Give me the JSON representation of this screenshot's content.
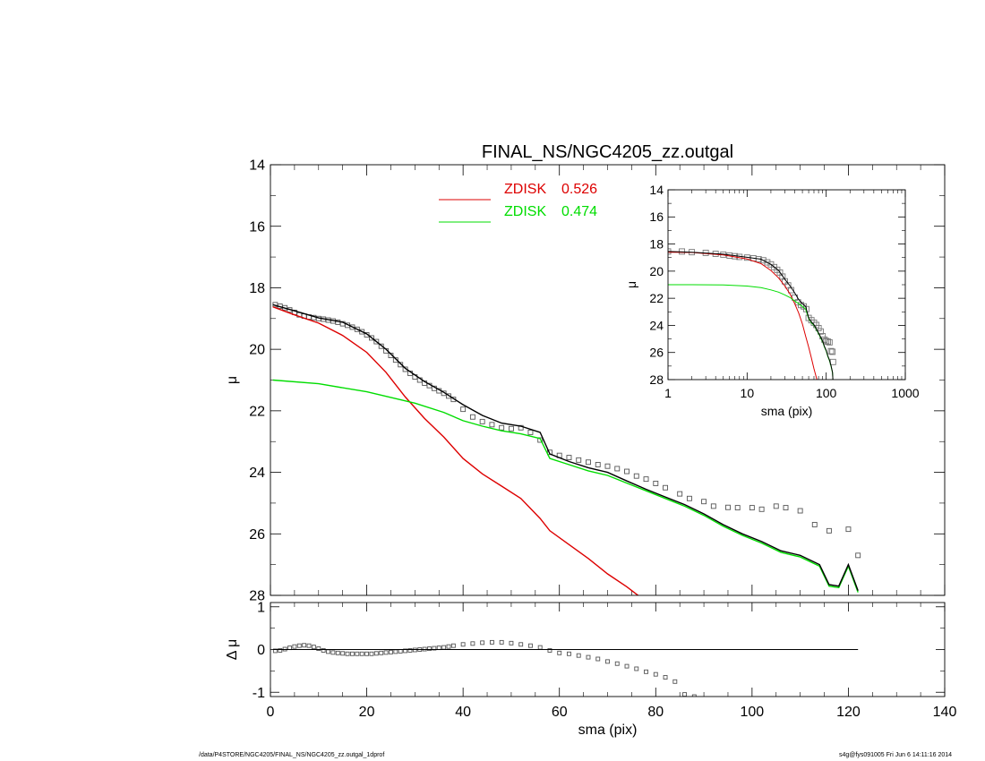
{
  "chart_data": [
    {
      "type": "line",
      "title": "FINAL_NS/NGC4205_zz.outgal",
      "xlabel": "",
      "ylabel": "μ",
      "xlim": [
        0,
        140
      ],
      "ylim": [
        28,
        14
      ],
      "yticks": [
        14,
        16,
        18,
        20,
        22,
        24,
        26,
        28
      ],
      "y_reversed": true,
      "legend_position": "top-center",
      "legend": [
        {
          "name": "ZDISK",
          "value": "0.526",
          "color": "#dd0000"
        },
        {
          "name": "ZDISK",
          "value": "0.474",
          "color": "#00dd00"
        }
      ],
      "series": [
        {
          "name": "data",
          "style": "square-markers",
          "color": "#555555",
          "x": [
            1,
            2,
            3,
            4,
            5,
            6,
            7,
            8,
            9,
            10,
            11,
            12,
            13,
            14,
            15,
            16,
            17,
            18,
            19,
            20,
            21,
            22,
            23,
            24,
            25,
            26,
            27,
            28,
            29,
            30,
            31,
            32,
            33,
            34,
            35,
            36,
            37,
            38,
            40,
            42,
            44,
            46,
            48,
            50,
            52,
            54,
            56,
            58,
            60,
            62,
            64,
            66,
            68,
            70,
            72,
            74,
            76,
            78,
            80,
            82,
            85,
            87,
            90,
            92,
            95,
            97,
            100,
            102,
            105,
            107,
            110,
            113,
            116,
            120,
            122
          ],
          "y": [
            18.55,
            18.6,
            18.65,
            18.72,
            18.8,
            18.88,
            18.92,
            18.95,
            18.97,
            19.0,
            19.02,
            19.05,
            19.08,
            19.12,
            19.17,
            19.22,
            19.28,
            19.35,
            19.43,
            19.53,
            19.63,
            19.75,
            19.9,
            20.05,
            20.2,
            20.35,
            20.5,
            20.65,
            20.78,
            20.9,
            21.0,
            21.1,
            21.18,
            21.27,
            21.35,
            21.43,
            21.52,
            21.63,
            21.95,
            22.2,
            22.35,
            22.45,
            22.55,
            22.58,
            22.55,
            22.7,
            22.95,
            23.35,
            23.45,
            23.52,
            23.6,
            23.67,
            23.75,
            23.8,
            23.88,
            23.97,
            24.12,
            24.22,
            24.36,
            24.5,
            24.7,
            24.85,
            24.95,
            25.1,
            25.14,
            25.15,
            25.15,
            25.2,
            25.1,
            25.15,
            25.25,
            25.7,
            25.9,
            25.85,
            26.7
          ]
        },
        {
          "name": "ZDISK 0.526",
          "color": "#dd0000",
          "x": [
            0.5,
            5,
            10,
            15,
            20,
            24,
            28,
            32,
            36,
            40,
            44,
            48,
            52,
            56,
            58,
            62,
            66,
            70,
            74,
            78
          ],
          "y": [
            18.62,
            18.88,
            19.15,
            19.55,
            20.1,
            20.75,
            21.55,
            22.25,
            22.85,
            23.55,
            24.05,
            24.45,
            24.85,
            25.5,
            25.9,
            26.35,
            26.8,
            27.3,
            27.72,
            28.2
          ]
        },
        {
          "name": "ZDISK 0.474",
          "color": "#00dd00",
          "x": [
            0.5,
            10,
            20,
            30,
            36,
            40,
            44,
            48,
            52,
            56,
            58,
            62,
            66,
            70,
            74,
            78,
            82,
            86,
            90,
            94,
            98,
            102,
            106,
            110,
            114,
            116,
            118,
            120,
            122
          ],
          "y": [
            21.0,
            21.12,
            21.38,
            21.75,
            22.05,
            22.32,
            22.5,
            22.65,
            22.75,
            22.9,
            23.55,
            23.75,
            23.95,
            24.1,
            24.35,
            24.6,
            24.85,
            25.1,
            25.4,
            25.75,
            26.05,
            26.3,
            26.6,
            26.75,
            27.05,
            27.7,
            27.75,
            27.05,
            27.9
          ]
        },
        {
          "name": "total model",
          "color": "#000000",
          "x": [
            0.5,
            5,
            10,
            15,
            20,
            24,
            28,
            32,
            36,
            40,
            44,
            48,
            52,
            56,
            58,
            62,
            66,
            70,
            74,
            78,
            82,
            86,
            90,
            94,
            98,
            102,
            106,
            110,
            114,
            116,
            118,
            120,
            122
          ],
          "y": [
            18.55,
            18.75,
            18.98,
            19.12,
            19.5,
            20.0,
            20.62,
            21.05,
            21.4,
            21.8,
            22.15,
            22.4,
            22.5,
            22.7,
            23.4,
            23.65,
            23.85,
            24.0,
            24.28,
            24.55,
            24.8,
            25.05,
            25.35,
            25.7,
            26.0,
            26.25,
            26.55,
            26.7,
            27.0,
            27.65,
            27.7,
            27.0,
            27.85
          ]
        }
      ]
    },
    {
      "type": "scatter",
      "xlabel": "sma (pix)",
      "ylabel": "Δ μ",
      "xlim": [
        0,
        140
      ],
      "ylim": [
        -1.1,
        1.1
      ],
      "xticks": [
        0,
        20,
        40,
        60,
        80,
        100,
        120,
        140
      ],
      "yticks": [
        -1,
        0,
        1
      ],
      "series": [
        {
          "name": "residual",
          "style": "square-markers",
          "color": "#555555",
          "x": [
            1,
            2,
            3,
            4,
            5,
            6,
            7,
            8,
            9,
            10,
            11,
            12,
            13,
            14,
            15,
            16,
            17,
            18,
            19,
            20,
            21,
            22,
            23,
            24,
            25,
            26,
            27,
            28,
            29,
            30,
            31,
            32,
            33,
            34,
            35,
            36,
            37,
            38,
            40,
            42,
            44,
            46,
            48,
            50,
            52,
            54,
            56,
            58,
            60,
            62,
            64,
            66,
            68,
            70,
            72,
            74,
            76,
            78,
            80,
            82,
            84,
            86,
            88
          ],
          "y": [
            -0.03,
            -0.02,
            0.01,
            0.04,
            0.07,
            0.09,
            0.1,
            0.09,
            0.06,
            0.02,
            -0.02,
            -0.05,
            -0.07,
            -0.08,
            -0.09,
            -0.1,
            -0.1,
            -0.1,
            -0.1,
            -0.1,
            -0.1,
            -0.09,
            -0.08,
            -0.07,
            -0.06,
            -0.05,
            -0.04,
            -0.03,
            -0.02,
            -0.01,
            0.0,
            0.01,
            0.02,
            0.03,
            0.04,
            0.05,
            0.07,
            0.09,
            0.12,
            0.14,
            0.16,
            0.17,
            0.17,
            0.15,
            0.12,
            0.09,
            0.05,
            -0.02,
            -0.08,
            -0.1,
            -0.14,
            -0.18,
            -0.22,
            -0.28,
            -0.33,
            -0.39,
            -0.45,
            -0.52,
            -0.58,
            -0.65,
            -0.75,
            -1.05,
            -1.1
          ]
        },
        {
          "name": "zero",
          "color": "#000000",
          "x": [
            0.5,
            122
          ],
          "y": [
            0,
            0
          ]
        }
      ]
    },
    {
      "type": "line",
      "title": "",
      "xlabel": "sma (pix)",
      "ylabel": "μ",
      "xscale": "log",
      "xlim": [
        1,
        1000
      ],
      "ylim": [
        28,
        14
      ],
      "xticks": [
        1,
        10,
        100,
        1000
      ],
      "yticks": [
        14,
        16,
        18,
        20,
        22,
        24,
        26,
        28
      ],
      "series": [
        {
          "name": "data",
          "style": "square-markers",
          "color": "#777777",
          "x": [
            1,
            1.5,
            2,
            3,
            4,
            5,
            6,
            7,
            8,
            10,
            12,
            14,
            16,
            18,
            20,
            22,
            24,
            26,
            28,
            30,
            33,
            36,
            40,
            44,
            48,
            52,
            56,
            60,
            65,
            70,
            75,
            80,
            85,
            90,
            95,
            100,
            105,
            110,
            115,
            120,
            122
          ],
          "y": [
            18.55,
            18.55,
            18.6,
            18.65,
            18.72,
            18.78,
            18.85,
            18.9,
            18.95,
            19.0,
            19.05,
            19.12,
            19.2,
            19.35,
            19.5,
            19.7,
            19.9,
            20.1,
            20.4,
            20.75,
            21.05,
            21.4,
            21.95,
            22.3,
            22.5,
            22.6,
            22.8,
            23.45,
            23.62,
            23.8,
            23.97,
            24.2,
            24.45,
            24.8,
            25.05,
            25.15,
            25.2,
            25.25,
            25.9,
            25.95,
            26.7
          ]
        },
        {
          "name": "ZDISK 0.526",
          "color": "#dd0000",
          "x": [
            1,
            2,
            5,
            10,
            15,
            20,
            25,
            30,
            35,
            40,
            45,
            50,
            55,
            60,
            65,
            70,
            78
          ],
          "y": [
            18.6,
            18.62,
            18.8,
            19.1,
            19.45,
            19.95,
            20.5,
            21.1,
            21.7,
            22.4,
            23.1,
            23.9,
            24.8,
            25.6,
            26.4,
            27.2,
            28.2
          ]
        },
        {
          "name": "ZDISK 0.474",
          "color": "#00dd00",
          "x": [
            1,
            2,
            5,
            10,
            15,
            20,
            25,
            30,
            35,
            40,
            45,
            50,
            55,
            60,
            65,
            70,
            75,
            80,
            85,
            90,
            95,
            100,
            105,
            110,
            115,
            120,
            122
          ],
          "y": [
            21.0,
            21.0,
            21.02,
            21.1,
            21.22,
            21.38,
            21.55,
            21.75,
            21.95,
            22.2,
            22.4,
            22.6,
            22.8,
            23.5,
            23.8,
            24.0,
            24.3,
            24.6,
            24.9,
            25.2,
            25.6,
            25.9,
            26.3,
            26.6,
            27.0,
            27.5,
            28.2
          ]
        },
        {
          "name": "total model",
          "color": "#000000",
          "x": [
            1,
            2,
            5,
            10,
            15,
            20,
            25,
            30,
            35,
            40,
            45,
            50,
            55,
            60,
            65,
            70,
            75,
            80,
            85,
            90,
            95,
            100,
            105,
            110,
            115,
            120,
            122
          ],
          "y": [
            18.55,
            18.6,
            18.75,
            18.98,
            19.12,
            19.5,
            19.95,
            20.6,
            21.1,
            21.6,
            22.1,
            22.4,
            22.6,
            23.45,
            23.75,
            23.95,
            24.25,
            24.55,
            24.85,
            25.15,
            25.55,
            25.85,
            26.25,
            26.55,
            26.95,
            27.45,
            28.2
          ]
        }
      ]
    }
  ],
  "footer": {
    "left": "/data/P4STORE/NGC4205/FINAL_NS/NGC4205_zz.outgal_1dprof",
    "right": "s4g@fys091005  Fri Jun  6 14:11:16 2014"
  }
}
